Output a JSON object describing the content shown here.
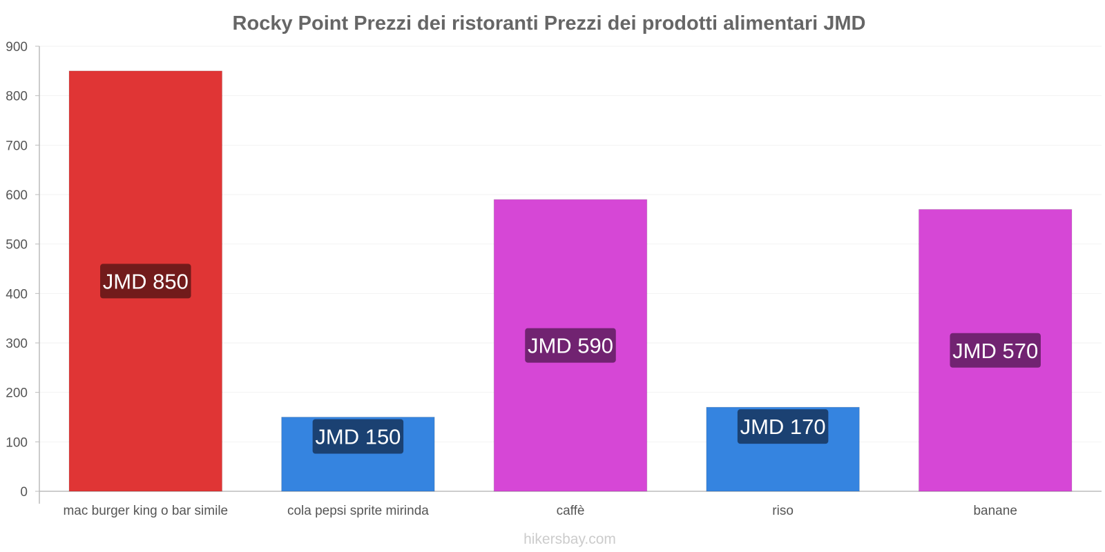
{
  "chart_data": {
    "type": "bar",
    "title": "Rocky Point Prezzi dei ristoranti Prezzi dei prodotti alimentari JMD",
    "categories": [
      "mac burger king o bar simile",
      "cola pepsi sprite mirinda",
      "caffè",
      "riso",
      "banane"
    ],
    "values": [
      850,
      150,
      590,
      170,
      570
    ],
    "data_labels": [
      "JMD 850",
      "JMD 150",
      "JMD 590",
      "JMD 170",
      "JMD 570"
    ],
    "bar_colors": [
      "#e03535",
      "#3584e0",
      "#d647d6",
      "#3584e0",
      "#d647d6"
    ],
    "label_bg_colors": [
      "#6b1a1a",
      "#1a3d6b",
      "#6b226b",
      "#1a3d6b",
      "#6b226b"
    ],
    "ylim": [
      0,
      900
    ],
    "yticks": [
      0,
      100,
      200,
      300,
      400,
      500,
      600,
      700,
      800,
      900
    ],
    "xlabel": "",
    "ylabel": "",
    "grid": true
  },
  "watermark": "hikersbay.com"
}
